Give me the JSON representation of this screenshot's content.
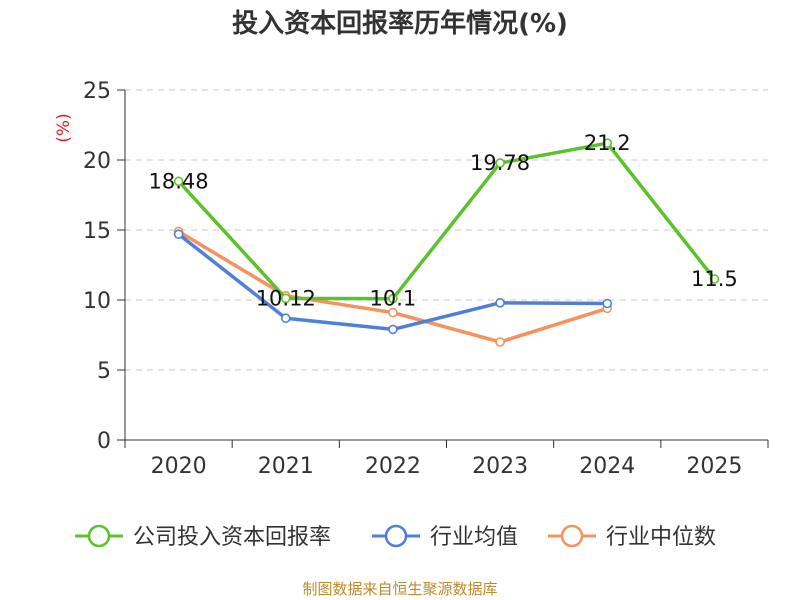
{
  "chart_data": {
    "type": "line",
    "title": "投入资本回报率历年情况(%)",
    "ylabel": "(%)",
    "xlabel": "",
    "categories": [
      "2020",
      "2021",
      "2022",
      "2023",
      "2024",
      "2025"
    ],
    "ylim": [
      0,
      25
    ],
    "yticks": [
      0,
      5,
      10,
      15,
      20,
      25
    ],
    "grid": true,
    "legend_position": "bottom",
    "series": [
      {
        "name": "公司投入资本回报率",
        "color": "#5cc22a",
        "values": [
          18.48,
          10.12,
          10.1,
          19.78,
          21.2,
          11.5
        ],
        "labels": [
          "18.48",
          "10.12",
          "10.1",
          "19.78",
          "21.2",
          "11.5"
        ]
      },
      {
        "name": "行业均值",
        "color": "#4f7fd8",
        "values": [
          14.7,
          8.7,
          7.9,
          9.8,
          9.75,
          null
        ]
      },
      {
        "name": "行业中位数",
        "color": "#f5925e",
        "values": [
          14.9,
          10.3,
          9.1,
          7.0,
          9.4,
          null
        ]
      }
    ]
  },
  "source_note": "制图数据来自恒生聚源数据库"
}
